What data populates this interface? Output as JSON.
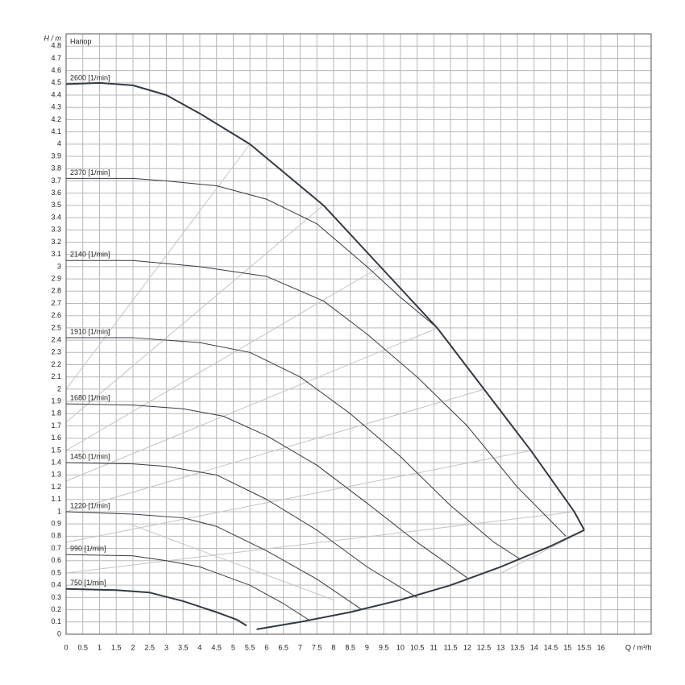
{
  "chart_data": {
    "type": "line",
    "annotation": "Напор",
    "ylabel": "H / m",
    "xlabel": "Q / m³/h",
    "xlim": [
      0,
      17.5
    ],
    "ylim": [
      0,
      4.9
    ],
    "xticks": [
      0,
      0.5,
      1,
      1.5,
      2,
      2.5,
      3,
      3.5,
      4,
      4.5,
      5,
      5.5,
      6,
      6.5,
      7,
      7.5,
      8,
      8.5,
      9,
      9.5,
      10,
      10.5,
      11,
      11.5,
      12,
      12.5,
      13,
      13.5,
      14,
      14.5,
      15,
      15.5,
      16
    ],
    "yticks": [
      0,
      0.1,
      0.2,
      0.3,
      0.4,
      0.5,
      0.6,
      0.7,
      0.8,
      0.9,
      1,
      1.1,
      1.2,
      1.3,
      1.4,
      1.5,
      1.6,
      1.7,
      1.8,
      1.9,
      2,
      2.1,
      2.2,
      2.3,
      2.4,
      2.5,
      2.6,
      2.7,
      2.8,
      2.9,
      3,
      3.1,
      3.2,
      3.3,
      3.4,
      3.5,
      3.6,
      3.7,
      3.8,
      3.9,
      4,
      4.1,
      4.2,
      4.3,
      4.4,
      4.5,
      4.6,
      4.7,
      4.8
    ],
    "grid": true,
    "series": [
      {
        "name": "2600 [1/min]",
        "color": "#333a44",
        "line_width": 2,
        "x": [
          0,
          1,
          2,
          3,
          4,
          5.5,
          7.7,
          9.4,
          11.1,
          12.5,
          13.9,
          15.2,
          15.5
        ],
        "values": [
          4.49,
          4.5,
          4.48,
          4.4,
          4.25,
          4.0,
          3.5,
          3.0,
          2.5,
          2.0,
          1.5,
          1.0,
          0.85
        ]
      },
      {
        "name": "2370 [1/min]",
        "color": "#333a44",
        "line_width": 1,
        "x": [
          0,
          2,
          3,
          4.5,
          6,
          7.5,
          9,
          10,
          11.1
        ],
        "values": [
          3.72,
          3.72,
          3.7,
          3.66,
          3.55,
          3.35,
          3.0,
          2.75,
          2.5
        ]
      },
      {
        "name": "2140 [1/min]",
        "color": "#333a44",
        "line_width": 1,
        "x": [
          0,
          2,
          4,
          6,
          7.7,
          9,
          10.5,
          12,
          13.5,
          14.95
        ],
        "values": [
          3.05,
          3.05,
          3.0,
          2.92,
          2.72,
          2.45,
          2.1,
          1.7,
          1.2,
          0.8
        ]
      },
      {
        "name": "1910 [1/min]",
        "color": "#333a44",
        "line_width": 1,
        "x": [
          0,
          2,
          4,
          5.5,
          7,
          8.5,
          10,
          11.5,
          12.8,
          13.6
        ],
        "values": [
          2.42,
          2.42,
          2.38,
          2.3,
          2.1,
          1.8,
          1.45,
          1.05,
          0.75,
          0.61
        ]
      },
      {
        "name": "1680 [1/min]",
        "color": "#333a44",
        "line_width": 1,
        "x": [
          0,
          2,
          3.5,
          4.7,
          6,
          7.5,
          9,
          10.5,
          12
        ],
        "values": [
          1.88,
          1.87,
          1.84,
          1.78,
          1.62,
          1.38,
          1.07,
          0.75,
          0.46
        ]
      },
      {
        "name": "1450 [1/min]",
        "color": "#333a44",
        "line_width": 1,
        "x": [
          0,
          2,
          3,
          4.5,
          6,
          7.5,
          9,
          10.5
        ],
        "values": [
          1.4,
          1.39,
          1.37,
          1.3,
          1.1,
          0.85,
          0.55,
          0.3
        ]
      },
      {
        "name": "1220 [1/min]",
        "color": "#333a44",
        "line_width": 1,
        "x": [
          0,
          2,
          3.5,
          4.5,
          6,
          7.5,
          8.85
        ],
        "values": [
          1.0,
          0.98,
          0.95,
          0.88,
          0.68,
          0.45,
          0.2
        ]
      },
      {
        "name": "990 [1/min]",
        "color": "#333a44",
        "line_width": 1,
        "x": [
          0,
          2,
          3,
          4,
          5.5,
          6.5,
          7.3
        ],
        "values": [
          0.65,
          0.64,
          0.6,
          0.55,
          0.4,
          0.25,
          0.11
        ]
      },
      {
        "name": "750 [1/min]",
        "color": "#333a44",
        "line_width": 2,
        "x": [
          0,
          1.5,
          2.5,
          3.5,
          4.5,
          5.1,
          5.4
        ],
        "values": [
          0.37,
          0.36,
          0.34,
          0.27,
          0.18,
          0.12,
          0.07
        ]
      }
    ],
    "boundary": {
      "color": "#333a44",
      "line_width": 2,
      "x": [
        5.7,
        7,
        8.5,
        10,
        11.5,
        13,
        14.5,
        15.5
      ],
      "values": [
        0.04,
        0.1,
        0.18,
        0.28,
        0.4,
        0.55,
        0.72,
        0.85
      ]
    }
  }
}
